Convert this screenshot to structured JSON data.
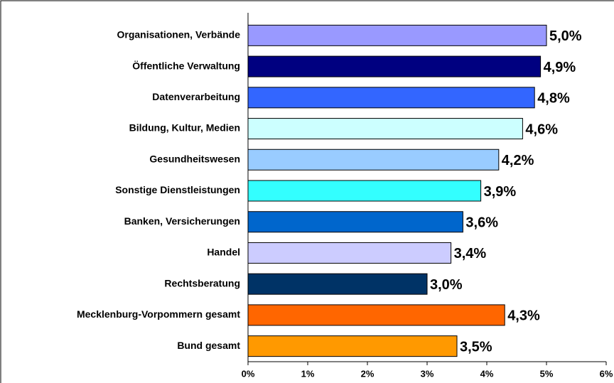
{
  "chart_data": {
    "type": "bar",
    "orientation": "horizontal",
    "categories": [
      "Organisationen, Verbände",
      "Öffentliche Verwaltung",
      "Datenverarbeitung",
      "Bildung, Kultur, Medien",
      "Gesundheitswesen",
      "Sonstige Dienstleistungen",
      "Banken, Versicherungen",
      "Handel",
      "Rechtsberatung",
      "Mecklenburg-Vorpommern gesamt",
      "Bund gesamt"
    ],
    "values": [
      5.0,
      4.9,
      4.8,
      4.6,
      4.2,
      3.9,
      3.6,
      3.4,
      3.0,
      4.3,
      3.5
    ],
    "value_labels": [
      "5,0%",
      "4,9%",
      "4,8%",
      "4,6%",
      "4,2%",
      "3,9%",
      "3,6%",
      "3,4%",
      "3,0%",
      "4,3%",
      "3,5%"
    ],
    "colors": [
      "#9999ff",
      "#000080",
      "#3366ff",
      "#ccffff",
      "#99ccff",
      "#33ffff",
      "#0066cc",
      "#ccccff",
      "#003366",
      "#ff6600",
      "#ff9900"
    ],
    "xlim": [
      0,
      6
    ],
    "xticks": [
      {
        "value": 0,
        "label": "0%"
      },
      {
        "value": 1,
        "label": "1%"
      },
      {
        "value": 2,
        "label": "2%"
      },
      {
        "value": 3,
        "label": "3%"
      },
      {
        "value": 4,
        "label": "4%"
      },
      {
        "value": 5,
        "label": "5%"
      },
      {
        "value": 6,
        "label": "6%"
      }
    ],
    "grid": false
  }
}
